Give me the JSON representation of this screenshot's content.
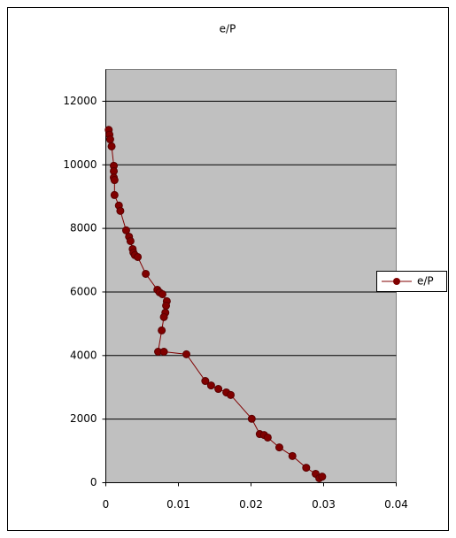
{
  "chart_data": {
    "type": "scatter-line",
    "title": "e/P",
    "series": [
      {
        "name": "e/P",
        "color": "#800000",
        "x": [
          0.0004,
          0.0005,
          0.0006,
          0.0008,
          0.0011,
          0.0011,
          0.0011,
          0.0012,
          0.0012,
          0.0018,
          0.002,
          0.0028,
          0.0032,
          0.0034,
          0.0037,
          0.0038,
          0.004,
          0.0044,
          0.0055,
          0.0071,
          0.0074,
          0.0078,
          0.0084,
          0.0083,
          0.0082,
          0.008,
          0.0077,
          0.0072,
          0.008,
          0.0111,
          0.0137,
          0.0145,
          0.0155,
          0.0166,
          0.0172,
          0.0201,
          0.0212,
          0.0218,
          0.0223,
          0.0239,
          0.0257,
          0.0276,
          0.0289,
          0.0294,
          0.0298
        ],
        "values": [
          11100,
          10950,
          10800,
          10580,
          9970,
          9800,
          9600,
          9520,
          9050,
          8720,
          8550,
          7940,
          7740,
          7600,
          7350,
          7240,
          7160,
          7100,
          6570,
          6070,
          5990,
          5930,
          5710,
          5570,
          5350,
          5210,
          4790,
          4120,
          4120,
          4040,
          3200,
          3060,
          2950,
          2840,
          2760,
          2010,
          1530,
          1500,
          1420,
          1110,
          840,
          470,
          280,
          140,
          190
        ]
      }
    ],
    "xlim": [
      0,
      0.04
    ],
    "xticks": [
      0,
      0.01,
      0.02,
      0.03,
      0.04
    ],
    "ylim": [
      0,
      13000
    ],
    "yticks": [
      0,
      2000,
      4000,
      6000,
      8000,
      10000,
      12000
    ],
    "grid": true,
    "legend": "right"
  }
}
